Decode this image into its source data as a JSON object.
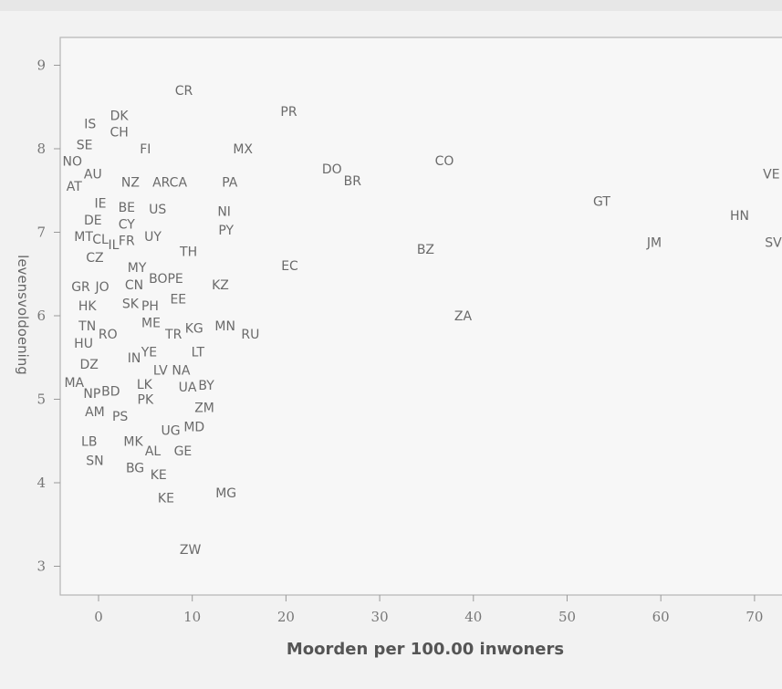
{
  "chart_data": {
    "type": "scatter",
    "title": "",
    "xlabel": "Moorden per 100.00 inwoners",
    "ylabel": "levensvoldoening",
    "xlim": [
      -4,
      73
    ],
    "ylim": [
      2.6,
      9.5
    ],
    "xticks": [
      {
        "value": 0,
        "label": "0"
      },
      {
        "value": 10,
        "label": "10"
      },
      {
        "value": 20,
        "label": "20"
      },
      {
        "value": 30,
        "label": "30"
      },
      {
        "value": 40,
        "label": "40"
      },
      {
        "value": 50,
        "label": "50"
      },
      {
        "value": 60,
        "label": "60"
      },
      {
        "value": 70,
        "label": "70"
      }
    ],
    "yticks": [
      {
        "value": 3,
        "label": "3"
      },
      {
        "value": 4,
        "label": "4"
      },
      {
        "value": 5,
        "label": "5"
      },
      {
        "value": 6,
        "label": "6"
      },
      {
        "value": 7,
        "label": "7"
      },
      {
        "value": 8,
        "label": "8"
      },
      {
        "value": 9,
        "label": "9"
      }
    ],
    "points": [
      {
        "label": "CR",
        "x": 9.1,
        "y": 8.7
      },
      {
        "label": "PR",
        "x": 20.3,
        "y": 8.45
      },
      {
        "label": "IS",
        "x": -0.9,
        "y": 8.3
      },
      {
        "label": "DK",
        "x": 2.2,
        "y": 8.4
      },
      {
        "label": "CH",
        "x": 2.2,
        "y": 8.2
      },
      {
        "label": "SE",
        "x": -1.5,
        "y": 8.05
      },
      {
        "label": "FI",
        "x": 5.0,
        "y": 8.0
      },
      {
        "label": "MX",
        "x": 15.4,
        "y": 8.0
      },
      {
        "label": "CO",
        "x": 36.9,
        "y": 7.86
      },
      {
        "label": "NO",
        "x": -2.8,
        "y": 7.85
      },
      {
        "label": "AU",
        "x": -0.6,
        "y": 7.7
      },
      {
        "label": "DO",
        "x": 24.9,
        "y": 7.76
      },
      {
        "label": "BR",
        "x": 27.1,
        "y": 7.62
      },
      {
        "label": "VE",
        "x": 71.8,
        "y": 7.7
      },
      {
        "label": "AT",
        "x": -2.6,
        "y": 7.55
      },
      {
        "label": "NZ",
        "x": 3.4,
        "y": 7.6
      },
      {
        "label": "ARCA",
        "x": 7.6,
        "y": 7.6
      },
      {
        "label": "PA",
        "x": 14.0,
        "y": 7.6
      },
      {
        "label": "GT",
        "x": 53.7,
        "y": 7.37
      },
      {
        "label": "IE",
        "x": 0.2,
        "y": 7.35
      },
      {
        "label": "BE",
        "x": 3.0,
        "y": 7.3
      },
      {
        "label": "US",
        "x": 6.3,
        "y": 7.28
      },
      {
        "label": "NI",
        "x": 13.4,
        "y": 7.25
      },
      {
        "label": "HN",
        "x": 68.4,
        "y": 7.2
      },
      {
        "label": "DE",
        "x": -0.6,
        "y": 7.15
      },
      {
        "label": "CY",
        "x": 3.0,
        "y": 7.1
      },
      {
        "label": "PY",
        "x": 13.6,
        "y": 7.03
      },
      {
        "label": "MT",
        "x": -1.6,
        "y": 6.95
      },
      {
        "label": "CL",
        "x": 0.2,
        "y": 6.92
      },
      {
        "label": "IL",
        "x": 1.6,
        "y": 6.85
      },
      {
        "label": "FR",
        "x": 3.0,
        "y": 6.9
      },
      {
        "label": "UY",
        "x": 5.8,
        "y": 6.95
      },
      {
        "label": "JM",
        "x": 59.3,
        "y": 6.88
      },
      {
        "label": "SV",
        "x": 72.0,
        "y": 6.88
      },
      {
        "label": "BZ",
        "x": 34.9,
        "y": 6.8
      },
      {
        "label": "TH",
        "x": 9.6,
        "y": 6.77
      },
      {
        "label": "CZ",
        "x": -0.4,
        "y": 6.7
      },
      {
        "label": "MY",
        "x": 4.1,
        "y": 6.58
      },
      {
        "label": "EC",
        "x": 20.4,
        "y": 6.6
      },
      {
        "label": "BOPE",
        "x": 7.2,
        "y": 6.45
      },
      {
        "label": "GR",
        "x": -1.9,
        "y": 6.35
      },
      {
        "label": "JO",
        "x": 0.4,
        "y": 6.35
      },
      {
        "label": "CN",
        "x": 3.8,
        "y": 6.37
      },
      {
        "label": "KZ",
        "x": 13.0,
        "y": 6.37
      },
      {
        "label": "EE",
        "x": 8.5,
        "y": 6.2
      },
      {
        "label": "HK",
        "x": -1.2,
        "y": 6.12
      },
      {
        "label": "SK",
        "x": 3.4,
        "y": 6.15
      },
      {
        "label": "PH",
        "x": 5.5,
        "y": 6.12
      },
      {
        "label": "ZA",
        "x": 38.9,
        "y": 6.0
      },
      {
        "label": "TN",
        "x": -1.2,
        "y": 5.88
      },
      {
        "label": "ME",
        "x": 5.6,
        "y": 5.92
      },
      {
        "label": "MN",
        "x": 13.5,
        "y": 5.88
      },
      {
        "label": "RO",
        "x": 1.0,
        "y": 5.78
      },
      {
        "label": "TR",
        "x": 8.0,
        "y": 5.78
      },
      {
        "label": "KG",
        "x": 10.2,
        "y": 5.85
      },
      {
        "label": "RU",
        "x": 16.2,
        "y": 5.78
      },
      {
        "label": "HU",
        "x": -1.6,
        "y": 5.67
      },
      {
        "label": "IN",
        "x": 3.8,
        "y": 5.5
      },
      {
        "label": "YE",
        "x": 5.4,
        "y": 5.57
      },
      {
        "label": "LT",
        "x": 10.6,
        "y": 5.57
      },
      {
        "label": "DZ",
        "x": -1.0,
        "y": 5.42
      },
      {
        "label": "LV",
        "x": 6.6,
        "y": 5.35
      },
      {
        "label": "NA",
        "x": 8.8,
        "y": 5.35
      },
      {
        "label": "MA",
        "x": -2.6,
        "y": 5.2
      },
      {
        "label": "LK",
        "x": 4.9,
        "y": 5.18
      },
      {
        "label": "UA",
        "x": 9.5,
        "y": 5.15
      },
      {
        "label": "BY",
        "x": 11.5,
        "y": 5.17
      },
      {
        "label": "NP",
        "x": -0.7,
        "y": 5.07
      },
      {
        "label": "BD",
        "x": 1.3,
        "y": 5.1
      },
      {
        "label": "PK",
        "x": 5.0,
        "y": 5.0
      },
      {
        "label": "ZM",
        "x": 11.3,
        "y": 4.9
      },
      {
        "label": "AM",
        "x": -0.4,
        "y": 4.85
      },
      {
        "label": "PS",
        "x": 2.3,
        "y": 4.8
      },
      {
        "label": "MD",
        "x": 10.2,
        "y": 4.67
      },
      {
        "label": "UG",
        "x": 7.7,
        "y": 4.63
      },
      {
        "label": "LB",
        "x": -1.0,
        "y": 4.5
      },
      {
        "label": "MK",
        "x": 3.7,
        "y": 4.5
      },
      {
        "label": "AL",
        "x": 5.8,
        "y": 4.38
      },
      {
        "label": "GE",
        "x": 9.0,
        "y": 4.38
      },
      {
        "label": "SN",
        "x": -0.4,
        "y": 4.27
      },
      {
        "label": "BG",
        "x": 3.9,
        "y": 4.18
      },
      {
        "label": "KE",
        "x": 6.4,
        "y": 4.1
      },
      {
        "label": "MG",
        "x": 13.6,
        "y": 3.88
      },
      {
        "label": "KE",
        "x": 7.2,
        "y": 3.82
      },
      {
        "label": "ZW",
        "x": 9.8,
        "y": 3.2
      }
    ],
    "grid": false,
    "legend": "none"
  }
}
